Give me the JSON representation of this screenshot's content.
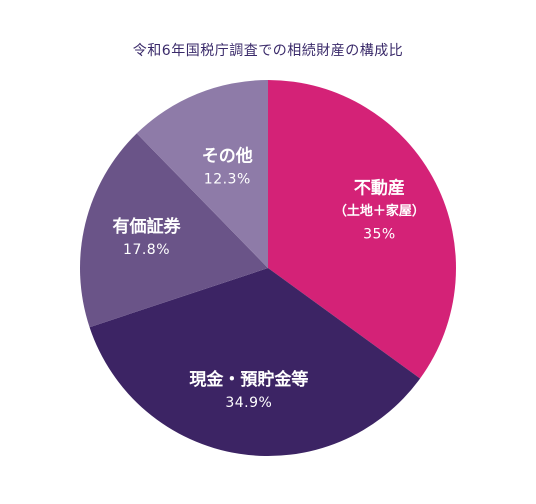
{
  "chart_data": {
    "type": "pie",
    "title": "令和6年国税庁調査での相続財産の構成比",
    "slices": [
      {
        "label": "不動産",
        "sublabel": "（土地＋家屋）",
        "value": 35,
        "value_label": "35%",
        "color": "#d42277"
      },
      {
        "label": "現金・預貯金等",
        "sublabel": "",
        "value": 34.9,
        "value_label": "34.9%",
        "color": "#3c2464"
      },
      {
        "label": "有価証券",
        "sublabel": "",
        "value": 17.8,
        "value_label": "17.8%",
        "color": "#6a5488"
      },
      {
        "label": "その他",
        "sublabel": "",
        "value": 12.3,
        "value_label": "12.3%",
        "color": "#8e7ba8"
      }
    ]
  }
}
